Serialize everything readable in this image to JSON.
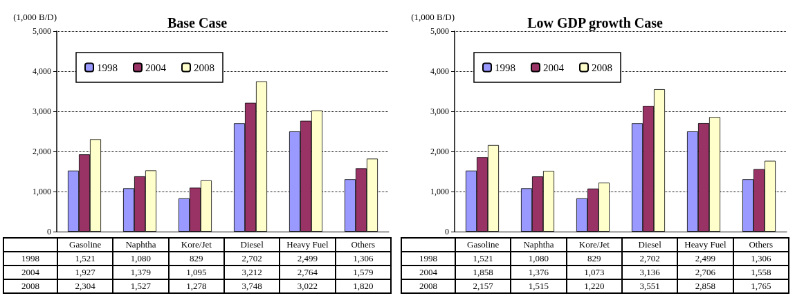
{
  "chart_data": [
    {
      "type": "bar",
      "title": "Base Case",
      "ylabel": "(1,000 B/D)",
      "categories": [
        "Gasoline",
        "Naphtha",
        "Kore/Jet",
        "Diesel",
        "Heavy Fuel",
        "Others"
      ],
      "series": [
        {
          "name": "1998",
          "color": "#9999ff",
          "values": [
            1521,
            1080,
            829,
            2702,
            2499,
            1306
          ],
          "value_labels": [
            "1,521",
            "1,080",
            "829",
            "2,702",
            "2,499",
            "1,306"
          ]
        },
        {
          "name": "2004",
          "color": "#993366",
          "values": [
            1927,
            1379,
            1095,
            3212,
            2764,
            1579
          ],
          "value_labels": [
            "1,927",
            "1,379",
            "1,095",
            "3,212",
            "2,764",
            "1,579"
          ]
        },
        {
          "name": "2008",
          "color": "#ffffcc",
          "values": [
            2304,
            1527,
            1278,
            3748,
            3022,
            1820
          ],
          "value_labels": [
            "2,304",
            "1,527",
            "1,278",
            "3,748",
            "3,022",
            "1,820"
          ]
        }
      ],
      "ylim": [
        0,
        5000
      ],
      "yticks": [
        0,
        {
          "value": 1000,
          "label": "1,000"
        },
        {
          "value": 2000,
          "label": "2,000"
        },
        {
          "value": 3000,
          "label": "3,000"
        },
        {
          "value": 4000,
          "label": "4,000"
        },
        {
          "value": 5000,
          "label": "5,000"
        }
      ],
      "grid": "y",
      "legend": "top left"
    },
    {
      "type": "bar",
      "title": "Low GDP growth Case",
      "ylabel": "(1,000 B/D)",
      "categories": [
        "Gasoline",
        "Naphtha",
        "Kore/Jet",
        "Diesel",
        "Heavy Fuel",
        "Others"
      ],
      "series": [
        {
          "name": "1998",
          "color": "#9999ff",
          "values": [
            1521,
            1080,
            829,
            2702,
            2499,
            1306
          ],
          "value_labels": [
            "1,521",
            "1,080",
            "829",
            "2,702",
            "2,499",
            "1,306"
          ]
        },
        {
          "name": "2004",
          "color": "#993366",
          "values": [
            1858,
            1376,
            1073,
            3136,
            2706,
            1558
          ],
          "value_labels": [
            "1,858",
            "1,376",
            "1,073",
            "3,136",
            "2,706",
            "1,558"
          ]
        },
        {
          "name": "2008",
          "color": "#ffffcc",
          "values": [
            2157,
            1515,
            1220,
            3551,
            2858,
            1765
          ],
          "value_labels": [
            "2,157",
            "1,515",
            "1,220",
            "3,551",
            "2,858",
            "1,765"
          ]
        }
      ],
      "ylim": [
        0,
        5000
      ],
      "yticks": [
        0,
        {
          "value": 1000,
          "label": "1,000"
        },
        {
          "value": 2000,
          "label": "2,000"
        },
        {
          "value": 3000,
          "label": "3,000"
        },
        {
          "value": 4000,
          "label": "4,000"
        },
        {
          "value": 5000,
          "label": "5,000"
        }
      ],
      "grid": "y",
      "legend": "top left"
    }
  ]
}
